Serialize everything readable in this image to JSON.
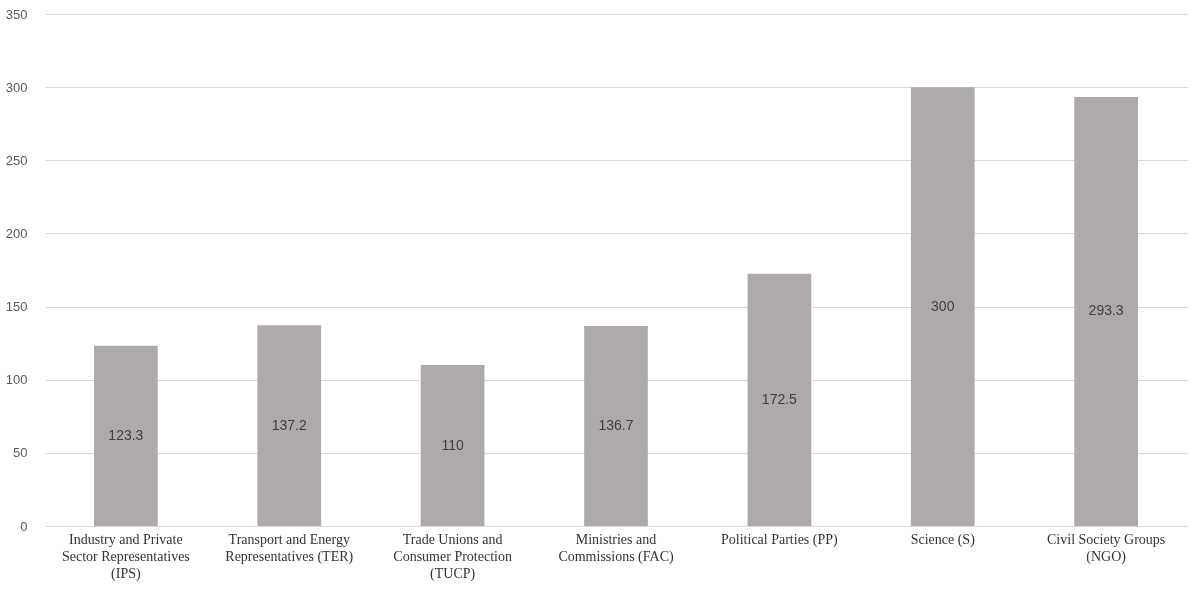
{
  "chart_data": {
    "type": "bar",
    "categories": [
      "Industry and Private Sector Representatives (IPS)",
      "Transport and Energy Representatives (TER)",
      "Trade Unions and Consumer Protection (TUCP)",
      "Ministries and Commissions (FAC)",
      "Political Parties (PP)",
      "Science (S)",
      "Civil Society Groups (NGO)"
    ],
    "values": [
      123.3,
      137.2,
      110,
      136.7,
      172.5,
      300,
      293.3
    ],
    "color": "#aeaaaa",
    "ylim": [
      0,
      350
    ],
    "yticks": [
      0,
      50,
      100,
      150,
      200,
      250,
      300,
      350
    ],
    "grid": "y",
    "data_labels": true
  }
}
